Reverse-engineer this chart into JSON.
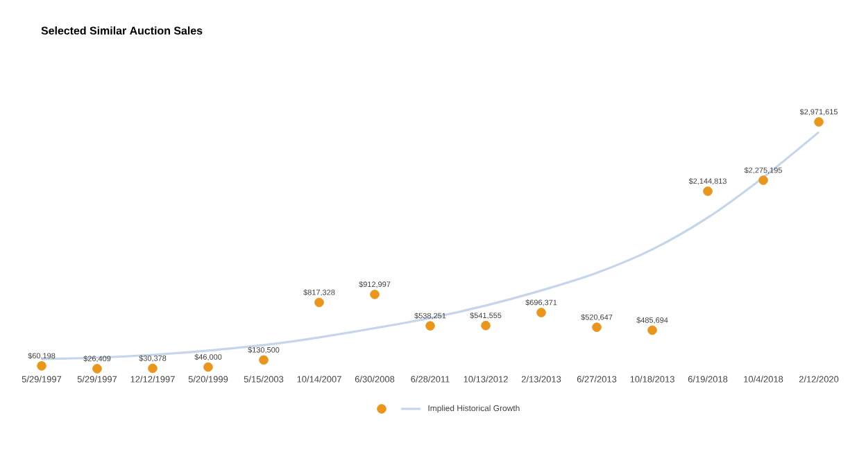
{
  "chart_data": {
    "type": "scatter",
    "title": "Selected Similar Auction Sales",
    "categories": [
      "5/29/1997",
      "5/29/1997",
      "12/12/1997",
      "5/20/1999",
      "5/15/2003",
      "10/14/2007",
      "6/30/2008",
      "6/28/2011",
      "10/13/2012",
      "2/13/2013",
      "6/27/2013",
      "10/18/2013",
      "6/19/2018",
      "10/4/2018",
      "2/12/2020"
    ],
    "series": [
      {
        "color": "#e8961e",
        "marker": "circle",
        "values": [
          60198,
          26409,
          30378,
          46000,
          130500,
          817328,
          912997,
          538251,
          541555,
          696371,
          520647,
          485694,
          2144813,
          2275195,
          2971615
        ],
        "value_labels": [
          "$60,198",
          "$26,409",
          "$30,378",
          "$46,000",
          "$130,500",
          "$817,328",
          "$912,997",
          "$538,251",
          "$541,555",
          "$696,371",
          "$520,647",
          "$485,694",
          "$2,144,813",
          "$2,275,195",
          "$2,971,615"
        ]
      },
      {
        "type": "line",
        "name": "Implied Historical Growth",
        "color": "#c5d5ea",
        "values": [
          142000,
          159000,
          192000,
          242000,
          308000,
          400000,
          510000,
          630000,
          780000,
          960000,
          1170000,
          1450000,
          1830000,
          2310000,
          2850000
        ]
      }
    ],
    "legend": "bottom"
  }
}
